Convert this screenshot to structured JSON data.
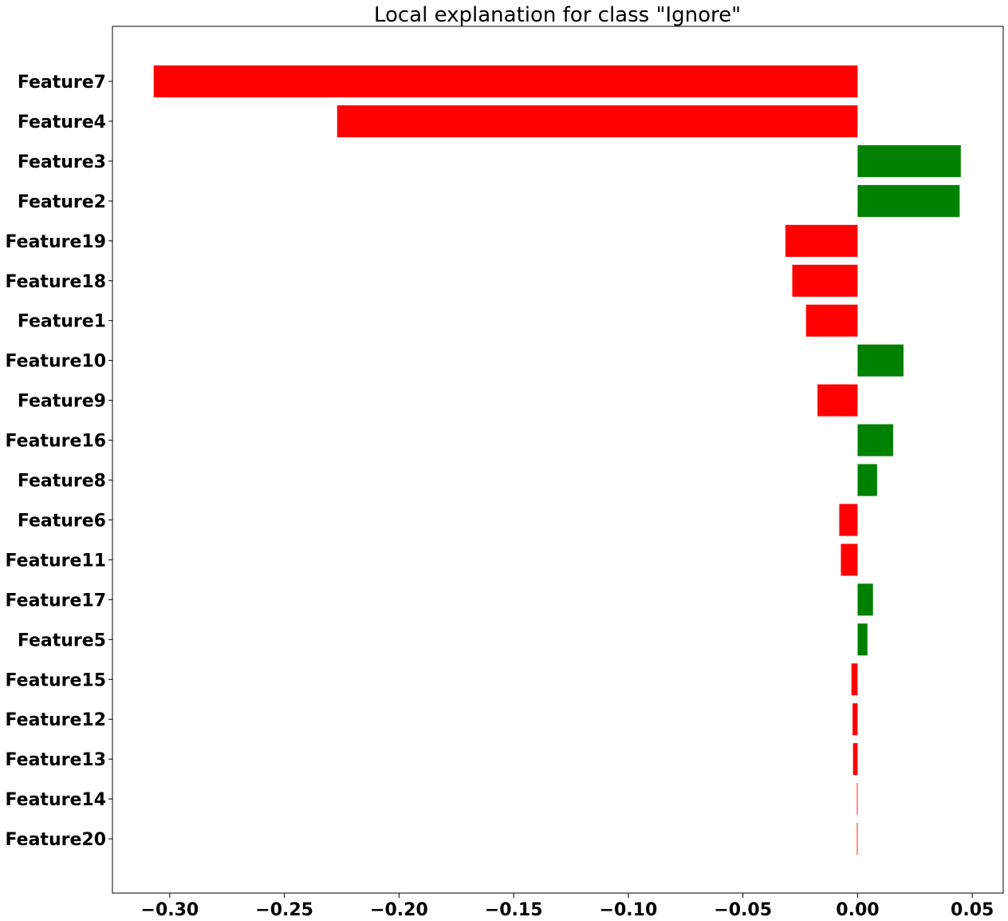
{
  "chart_data": {
    "type": "bar",
    "orientation": "horizontal",
    "title": "Local explanation for class \"Ignore\"",
    "xlabel": "",
    "ylabel": "",
    "xlim": [
      -0.325,
      0.0635
    ],
    "x_ticks": [
      -0.3,
      -0.25,
      -0.2,
      -0.15,
      -0.1,
      -0.05,
      0.0,
      0.05
    ],
    "x_tick_labels": [
      "−0.30",
      "−0.25",
      "−0.20",
      "−0.15",
      "−0.10",
      "−0.05",
      "0.00",
      "0.05"
    ],
    "grid": false,
    "colors": {
      "positive": "#008000",
      "negative": "#ff0000",
      "axis": "#000000",
      "background": "#ffffff"
    },
    "categories": [
      "Feature7",
      "Feature4",
      "Feature3",
      "Feature2",
      "Feature19",
      "Feature18",
      "Feature1",
      "Feature10",
      "Feature9",
      "Feature16",
      "Feature8",
      "Feature6",
      "Feature11",
      "Feature17",
      "Feature5",
      "Feature15",
      "Feature12",
      "Feature13",
      "Feature14",
      "Feature20"
    ],
    "values": [
      -0.307,
      -0.227,
      0.045,
      0.0445,
      -0.0315,
      -0.0285,
      -0.0225,
      0.02,
      -0.0175,
      0.0155,
      0.0085,
      -0.008,
      -0.0073,
      0.0067,
      0.0043,
      -0.0027,
      -0.0022,
      -0.002,
      -0.0003,
      -0.0003
    ]
  }
}
